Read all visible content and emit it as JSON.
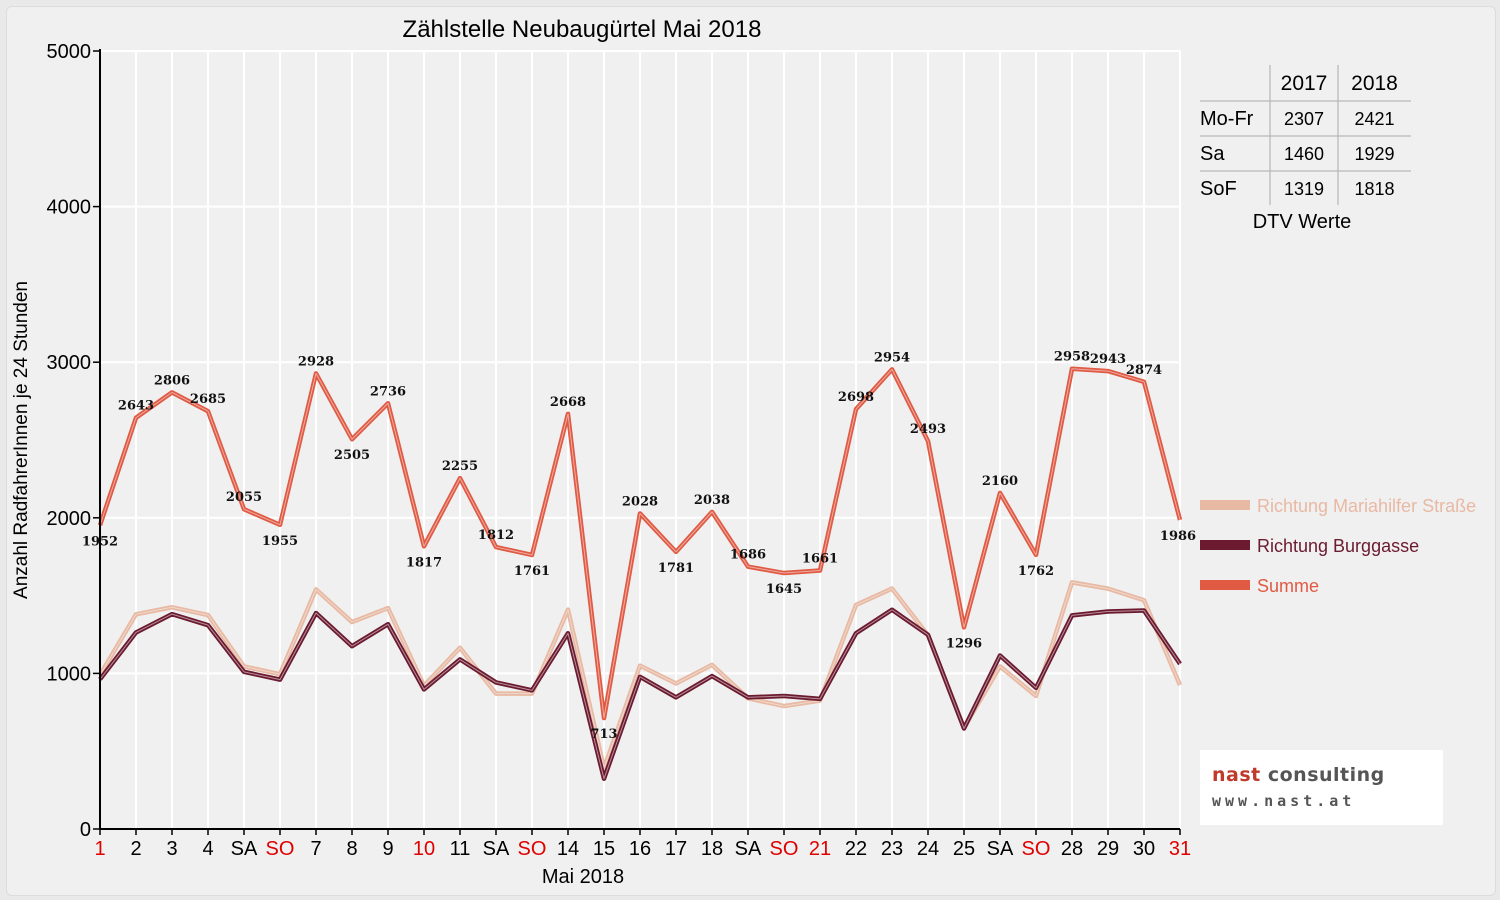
{
  "chart_data": {
    "type": "line",
    "title": "Zählstelle Neubaugürtel Mai 2018",
    "xlabel": "Mai 2018",
    "ylabel": "Anzahl RadfahrerInnen je 24 Stunden",
    "ylim": [
      0,
      5000
    ],
    "yticks": [
      "0",
      "1000",
      "2000",
      "3000",
      "4000",
      "5000"
    ],
    "grid": true,
    "legend_position": "right",
    "categories": [
      "1",
      "2",
      "3",
      "4",
      "SA",
      "SO",
      "7",
      "8",
      "9",
      "10",
      "11",
      "SA",
      "SO",
      "14",
      "15",
      "16",
      "17",
      "18",
      "SA",
      "SO",
      "21",
      "22",
      "23",
      "24",
      "25",
      "SA",
      "SO",
      "28",
      "29",
      "30",
      "31"
    ],
    "holiday_indices": [
      0,
      5,
      9,
      12,
      19,
      20,
      26,
      30
    ],
    "series": [
      {
        "name": "Richtung Mariahilfer Straße",
        "color": "#e8b9a3",
        "values": [
          990,
          1380,
          1425,
          1375,
          1045,
          995,
          1540,
          1330,
          1420,
          920,
          1165,
          870,
          870,
          1410,
          390,
          1050,
          935,
          1055,
          840,
          790,
          825,
          1440,
          1545,
          1245,
          650,
          1045,
          855,
          1585,
          1545,
          1470,
          925
        ]
      },
      {
        "name": "Richtung Burggasse",
        "color": "#6b1a30",
        "values": [
          962,
          1263,
          1381,
          1310,
          1010,
          960,
          1388,
          1175,
          1316,
          897,
          1090,
          942,
          891,
          1258,
          323,
          978,
          846,
          983,
          846,
          855,
          836,
          1258,
          1409,
          1248,
          646,
          1115,
          907,
          1373,
          1398,
          1404,
          1061
        ]
      },
      {
        "name": "Summe",
        "color": "#e05a44",
        "values": [
          1952,
          2643,
          2806,
          2685,
          2055,
          1955,
          2928,
          2505,
          2736,
          1817,
          2255,
          1812,
          1761,
          2668,
          713,
          2028,
          1781,
          2038,
          1686,
          1645,
          1661,
          2698,
          2954,
          2493,
          1296,
          2160,
          1762,
          2958,
          2943,
          2874,
          1986
        ]
      }
    ],
    "data_labels": [
      "1952",
      "2643",
      "2806",
      "2685",
      "2055",
      "1955",
      "2928",
      "2505",
      "2736",
      "1817",
      "2255",
      "1812",
      "1761",
      "2668",
      "713",
      "2028",
      "1781",
      "2038",
      "1686",
      "1645",
      "1661",
      "2698",
      "2954",
      "2493",
      "1296",
      "2160",
      "1762",
      "2958",
      "2943",
      "2874",
      "1986"
    ]
  },
  "dtv_table": {
    "header": [
      "",
      "2017",
      "2018"
    ],
    "rows": [
      [
        "Mo-Fr",
        "2307",
        "2421"
      ],
      [
        "Sa",
        "1460",
        "1929"
      ],
      [
        "SoF",
        "1319",
        "1818"
      ]
    ],
    "caption": "DTV Werte"
  },
  "logo": {
    "name_part1": "nast ",
    "name_part2": "consulting",
    "url": "www.nast.at"
  },
  "colors": {
    "holiday_label": "#e00000",
    "axis": "#000000",
    "grid": "#ffffff"
  }
}
